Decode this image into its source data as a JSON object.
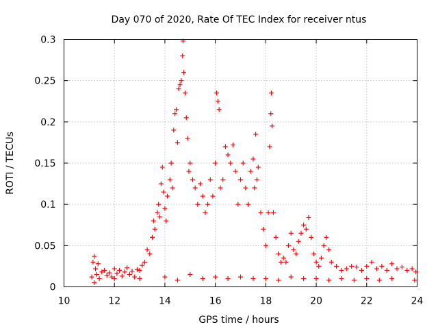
{
  "chart_data": {
    "type": "scatter",
    "title": "Day 070 of 2020, Rate Of TEC Index for receiver ntus",
    "xlabel": "GPS time / hours",
    "ylabel": "ROTI / TECUs",
    "xlim": [
      10,
      24
    ],
    "ylim": [
      0,
      0.3
    ],
    "xticks": [
      10,
      12,
      14,
      16,
      18,
      20,
      22,
      24
    ],
    "xtick_labels": [
      "10",
      "12",
      "14",
      "16",
      "18",
      "20",
      "22",
      "24"
    ],
    "yticks": [
      0,
      0.05,
      0.1,
      0.15,
      0.2,
      0.25,
      0.3
    ],
    "ytick_labels": [
      "0",
      "0.05",
      "0.1",
      "0.15",
      "0.2",
      "0.25",
      "0.3"
    ],
    "grid": true,
    "marker": "+",
    "color": "#ff0000",
    "series": [
      {
        "name": "ROTI",
        "points": [
          [
            11.1,
            0.012
          ],
          [
            11.15,
            0.03
          ],
          [
            11.2,
            0.037
          ],
          [
            11.25,
            0.022
          ],
          [
            11.3,
            0.015
          ],
          [
            11.35,
            0.028
          ],
          [
            11.4,
            0.01
          ],
          [
            11.5,
            0.018
          ],
          [
            11.6,
            0.02
          ],
          [
            11.7,
            0.014
          ],
          [
            11.8,
            0.017
          ],
          [
            11.9,
            0.012
          ],
          [
            12.0,
            0.022
          ],
          [
            12.1,
            0.016
          ],
          [
            12.2,
            0.02
          ],
          [
            12.3,
            0.013
          ],
          [
            12.4,
            0.018
          ],
          [
            12.5,
            0.023
          ],
          [
            12.6,
            0.015
          ],
          [
            12.7,
            0.019
          ],
          [
            12.8,
            0.012
          ],
          [
            12.9,
            0.021
          ],
          [
            13.0,
            0.02
          ],
          [
            13.1,
            0.026
          ],
          [
            13.2,
            0.03
          ],
          [
            13.3,
            0.045
          ],
          [
            13.4,
            0.04
          ],
          [
            13.5,
            0.06
          ],
          [
            13.55,
            0.08
          ],
          [
            13.6,
            0.07
          ],
          [
            13.7,
            0.09
          ],
          [
            13.75,
            0.1
          ],
          [
            13.8,
            0.085
          ],
          [
            13.85,
            0.125
          ],
          [
            13.9,
            0.145
          ],
          [
            13.95,
            0.115
          ],
          [
            14.0,
            0.095
          ],
          [
            14.05,
            0.08
          ],
          [
            14.1,
            0.11
          ],
          [
            14.2,
            0.13
          ],
          [
            14.25,
            0.15
          ],
          [
            14.3,
            0.12
          ],
          [
            14.35,
            0.19
          ],
          [
            14.4,
            0.21
          ],
          [
            14.45,
            0.215
          ],
          [
            14.5,
            0.175
          ],
          [
            14.55,
            0.24
          ],
          [
            14.6,
            0.245
          ],
          [
            14.65,
            0.25
          ],
          [
            14.7,
            0.28
          ],
          [
            14.72,
            0.298
          ],
          [
            14.75,
            0.26
          ],
          [
            14.8,
            0.235
          ],
          [
            14.85,
            0.205
          ],
          [
            14.9,
            0.18
          ],
          [
            14.95,
            0.14
          ],
          [
            15.0,
            0.15
          ],
          [
            15.1,
            0.13
          ],
          [
            15.2,
            0.12
          ],
          [
            15.3,
            0.1
          ],
          [
            15.4,
            0.125
          ],
          [
            15.5,
            0.11
          ],
          [
            15.6,
            0.09
          ],
          [
            15.7,
            0.1
          ],
          [
            15.8,
            0.13
          ],
          [
            15.9,
            0.11
          ],
          [
            16.0,
            0.15
          ],
          [
            16.05,
            0.235
          ],
          [
            16.1,
            0.225
          ],
          [
            16.15,
            0.215
          ],
          [
            16.2,
            0.12
          ],
          [
            16.3,
            0.13
          ],
          [
            16.4,
            0.17
          ],
          [
            16.5,
            0.16
          ],
          [
            16.6,
            0.15
          ],
          [
            16.7,
            0.172
          ],
          [
            16.8,
            0.14
          ],
          [
            16.9,
            0.1
          ],
          [
            17.0,
            0.13
          ],
          [
            17.1,
            0.15
          ],
          [
            17.2,
            0.12
          ],
          [
            17.3,
            0.1
          ],
          [
            17.4,
            0.14
          ],
          [
            17.5,
            0.155
          ],
          [
            17.55,
            0.12
          ],
          [
            17.6,
            0.185
          ],
          [
            17.65,
            0.13
          ],
          [
            17.7,
            0.145
          ],
          [
            17.8,
            0.09
          ],
          [
            17.9,
            0.07
          ],
          [
            18.0,
            0.05
          ],
          [
            18.1,
            0.09
          ],
          [
            18.15,
            0.17
          ],
          [
            18.2,
            0.21
          ],
          [
            18.22,
            0.235
          ],
          [
            18.25,
            0.195
          ],
          [
            18.3,
            0.09
          ],
          [
            18.4,
            0.06
          ],
          [
            18.5,
            0.04
          ],
          [
            18.6,
            0.03
          ],
          [
            18.7,
            0.035
          ],
          [
            18.8,
            0.03
          ],
          [
            18.9,
            0.05
          ],
          [
            19.0,
            0.065
          ],
          [
            19.1,
            0.045
          ],
          [
            19.2,
            0.04
          ],
          [
            19.3,
            0.055
          ],
          [
            19.4,
            0.065
          ],
          [
            19.5,
            0.075
          ],
          [
            19.6,
            0.07
          ],
          [
            19.7,
            0.084
          ],
          [
            19.8,
            0.06
          ],
          [
            19.9,
            0.04
          ],
          [
            20.0,
            0.03
          ],
          [
            20.1,
            0.025
          ],
          [
            20.2,
            0.035
          ],
          [
            20.3,
            0.05
          ],
          [
            20.4,
            0.06
          ],
          [
            20.5,
            0.045
          ],
          [
            20.6,
            0.03
          ],
          [
            20.8,
            0.025
          ],
          [
            21.0,
            0.02
          ],
          [
            21.2,
            0.022
          ],
          [
            21.4,
            0.025
          ],
          [
            21.6,
            0.024
          ],
          [
            21.8,
            0.02
          ],
          [
            22.0,
            0.025
          ],
          [
            22.2,
            0.03
          ],
          [
            22.4,
            0.022
          ],
          [
            22.6,
            0.025
          ],
          [
            22.8,
            0.02
          ],
          [
            23.0,
            0.028
          ],
          [
            23.2,
            0.022
          ],
          [
            23.4,
            0.024
          ],
          [
            23.6,
            0.02
          ],
          [
            23.8,
            0.022
          ],
          [
            23.95,
            0.018
          ],
          [
            12.0,
            0.01
          ],
          [
            13.0,
            0.01
          ],
          [
            14.0,
            0.012
          ],
          [
            15.0,
            0.015
          ],
          [
            16.0,
            0.012
          ],
          [
            17.0,
            0.012
          ],
          [
            18.0,
            0.01
          ],
          [
            19.0,
            0.012
          ],
          [
            20.0,
            0.01
          ],
          [
            21.0,
            0.01
          ],
          [
            22.0,
            0.01
          ],
          [
            23.0,
            0.01
          ],
          [
            23.9,
            0.008
          ],
          [
            11.2,
            0.005
          ],
          [
            14.5,
            0.008
          ],
          [
            15.5,
            0.01
          ],
          [
            16.5,
            0.01
          ],
          [
            17.5,
            0.01
          ],
          [
            18.5,
            0.008
          ],
          [
            19.5,
            0.01
          ],
          [
            20.5,
            0.008
          ],
          [
            21.5,
            0.008
          ],
          [
            22.5,
            0.008
          ]
        ]
      }
    ]
  }
}
